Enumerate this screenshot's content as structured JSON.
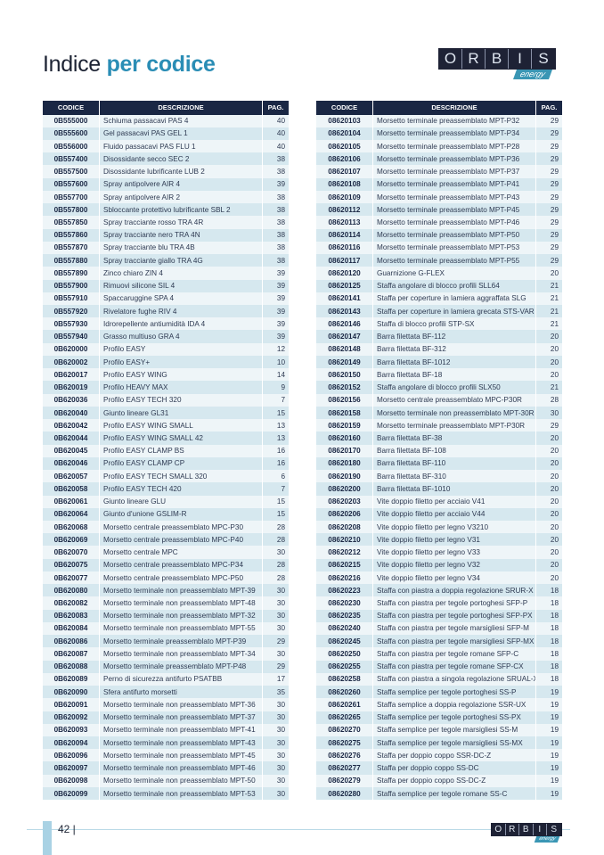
{
  "title": {
    "plain": "Indice ",
    "bold": "per codice"
  },
  "logo": {
    "letters": [
      "O",
      "R",
      "B",
      "I",
      "S"
    ],
    "sub": "energy"
  },
  "headers": {
    "code": "CODICE",
    "desc": "DESCRIZIONE",
    "page": "PAG."
  },
  "left_rows": [
    [
      "0B555000",
      "Schiuma passacavi PAS 4",
      "40"
    ],
    [
      "0B555600",
      "Gel passacavi PAS GEL 1",
      "40"
    ],
    [
      "0B556000",
      "Fluido passacavi PAS FLU 1",
      "40"
    ],
    [
      "0B557400",
      "Disossidante secco SEC 2",
      "38"
    ],
    [
      "0B557500",
      "Disossidante lubrificante LUB 2",
      "38"
    ],
    [
      "0B557600",
      "Spray antipolvere AIR 4",
      "39"
    ],
    [
      "0B557700",
      "Spray antipolvere AIR 2",
      "38"
    ],
    [
      "0B557800",
      "Sbloccante protettivo lubrificante SBL 2",
      "38"
    ],
    [
      "0B557850",
      "Spray tracciante rosso TRA 4R",
      "38"
    ],
    [
      "0B557860",
      "Spray tracciante nero TRA 4N",
      "38"
    ],
    [
      "0B557870",
      "Spray tracciante blu TRA 4B",
      "38"
    ],
    [
      "0B557880",
      "Spray tracciante giallo TRA 4G",
      "38"
    ],
    [
      "0B557890",
      "Zinco chiaro ZIN 4",
      "39"
    ],
    [
      "0B557900",
      "Rimuovi silicone SIL 4",
      "39"
    ],
    [
      "0B557910",
      "Spaccaruggine SPA 4",
      "39"
    ],
    [
      "0B557920",
      "Rivelatore fughe RIV 4",
      "39"
    ],
    [
      "0B557930",
      "Idrorepellente antiumidità IDA 4",
      "39"
    ],
    [
      "0B557940",
      "Grasso multiuso GRA 4",
      "39"
    ],
    [
      "0B620000",
      "Profilo EASY",
      "12"
    ],
    [
      "0B620002",
      "Profilo EASY+",
      "10"
    ],
    [
      "0B620017",
      "Profilo EASY WING",
      "14"
    ],
    [
      "0B620019",
      "Profilo HEAVY MAX",
      "9"
    ],
    [
      "0B620036",
      "Profilo EASY TECH 320",
      "7"
    ],
    [
      "0B620040",
      "Giunto lineare GL31",
      "15"
    ],
    [
      "0B620042",
      "Profilo EASY WING SMALL",
      "13"
    ],
    [
      "0B620044",
      "Profilo EASY WING SMALL 42",
      "13"
    ],
    [
      "0B620045",
      "Profilo EASY CLAMP BS",
      "16"
    ],
    [
      "0B620046",
      "Profilo EASY CLAMP CP",
      "16"
    ],
    [
      "0B620057",
      "Profilo EASY TECH SMALL 320",
      "6"
    ],
    [
      "0B620058",
      "Profilo EASY TECH 420",
      "7"
    ],
    [
      "0B620061",
      "Giunto lineare GLU",
      "15"
    ],
    [
      "0B620064",
      "Giunto d'unione GSLIM-R",
      "15"
    ],
    [
      "0B620068",
      "Morsetto centrale preassemblato MPC-P30",
      "28"
    ],
    [
      "0B620069",
      "Morsetto centrale preassemblato MPC-P40",
      "28"
    ],
    [
      "0B620070",
      "Morsetto centrale MPC",
      "30"
    ],
    [
      "0B620075",
      "Morsetto centrale preassemblato MPC-P34",
      "28"
    ],
    [
      "0B620077",
      "Morsetto centrale preassemblato MPC-P50",
      "28"
    ],
    [
      "0B620080",
      "Morsetto terminale non preassemblato MPT-39",
      "30"
    ],
    [
      "0B620082",
      "Morsetto terminale non preassemblato MPT-48",
      "30"
    ],
    [
      "0B620083",
      "Morsetto terminale non preassemblato MPT-32",
      "30"
    ],
    [
      "0B620084",
      "Morsetto terminale non preassemblato MPT-55",
      "30"
    ],
    [
      "0B620086",
      "Morsetto terminale preassemblato MPT-P39",
      "29"
    ],
    [
      "0B620087",
      "Morsetto terminale non preassemblato MPT-34",
      "30"
    ],
    [
      "0B620088",
      "Morsetto terminale preassemblato MPT-P48",
      "29"
    ],
    [
      "0B620089",
      "Perno di sicurezza antifurto PSATBB",
      "17"
    ],
    [
      "0B620090",
      "Sfera antifurto morsetti",
      "35"
    ],
    [
      "0B620091",
      "Morsetto terminale non preassemblato MPT-36",
      "30"
    ],
    [
      "0B620092",
      "Morsetto terminale non preassemblato MPT-37",
      "30"
    ],
    [
      "0B620093",
      "Morsetto terminale non preassemblato MPT-41",
      "30"
    ],
    [
      "0B620094",
      "Morsetto terminale non preassemblato MPT-43",
      "30"
    ],
    [
      "0B620096",
      "Morsetto terminale non preassemblato MPT-45",
      "30"
    ],
    [
      "0B620097",
      "Morsetto terminale non preassemblato MPT-46",
      "30"
    ],
    [
      "0B620098",
      "Morsetto terminale non preassemblato MPT-50",
      "30"
    ],
    [
      "0B620099",
      "Morsetto terminale non preassemblato MPT-53",
      "30"
    ]
  ],
  "right_rows": [
    [
      "08620103",
      "Morsetto terminale preassemblato MPT-P32",
      "29"
    ],
    [
      "08620104",
      "Morsetto terminale preassemblato MPT-P34",
      "29"
    ],
    [
      "08620105",
      "Morsetto terminale preassemblato MPT-P28",
      "29"
    ],
    [
      "08620106",
      "Morsetto terminale preassemblato MPT-P36",
      "29"
    ],
    [
      "08620107",
      "Morsetto terminale preassemblato MPT-P37",
      "29"
    ],
    [
      "08620108",
      "Morsetto terminale preassemblato MPT-P41",
      "29"
    ],
    [
      "08620109",
      "Morsetto terminale preassemblato MPT-P43",
      "29"
    ],
    [
      "08620112",
      "Morsetto terminale preassemblato MPT-P45",
      "29"
    ],
    [
      "08620113",
      "Morsetto terminale preassemblato MPT-P46",
      "29"
    ],
    [
      "08620114",
      "Morsetto terminale preassemblato MPT-P50",
      "29"
    ],
    [
      "08620116",
      "Morsetto terminale preassemblato MPT-P53",
      "29"
    ],
    [
      "08620117",
      "Morsetto terminale preassemblato MPT-P55",
      "29"
    ],
    [
      "08620120",
      "Guarnizione G-FLEX",
      "20"
    ],
    [
      "08620125",
      "Staffa angolare di blocco profili SLL64",
      "21"
    ],
    [
      "08620141",
      "Staffa per coperture in lamiera aggraffata SLG",
      "21"
    ],
    [
      "08620143",
      "Staffa per coperture in lamiera grecata STS-VAR",
      "21"
    ],
    [
      "08620146",
      "Staffa di blocco profili STP-SX",
      "21"
    ],
    [
      "08620147",
      "Barra filettata BF-112",
      "20"
    ],
    [
      "08620148",
      "Barra filettata BF-312",
      "20"
    ],
    [
      "08620149",
      "Barra filettata BF-1012",
      "20"
    ],
    [
      "08620150",
      "Barra filettata BF-18",
      "20"
    ],
    [
      "08620152",
      "Staffa angolare di blocco profili SLX50",
      "21"
    ],
    [
      "08620156",
      "Morsetto centrale preassemblato MPC-P30R",
      "28"
    ],
    [
      "08620158",
      "Morsetto terminale non preassemblato MPT-30R",
      "30"
    ],
    [
      "08620159",
      "Morsetto terminale preassemblato MPT-P30R",
      "29"
    ],
    [
      "08620160",
      "Barra filettata BF-38",
      "20"
    ],
    [
      "08620170",
      "Barra filettata BF-108",
      "20"
    ],
    [
      "08620180",
      "Barra filettata BF-110",
      "20"
    ],
    [
      "08620190",
      "Barra filettata BF-310",
      "20"
    ],
    [
      "08620200",
      "Barra filettata BF-1010",
      "20"
    ],
    [
      "08620203",
      "Vite doppio filetto per acciaio V41",
      "20"
    ],
    [
      "08620206",
      "Vite doppio filetto per acciaio V44",
      "20"
    ],
    [
      "08620208",
      "Vite doppio filetto per legno V3210",
      "20"
    ],
    [
      "08620210",
      "Vite doppio filetto per legno V31",
      "20"
    ],
    [
      "08620212",
      "Vite doppio filetto per legno V33",
      "20"
    ],
    [
      "08620215",
      "Vite doppio filetto per legno V32",
      "20"
    ],
    [
      "08620216",
      "Vite doppio filetto per legno V34",
      "20"
    ],
    [
      "08620223",
      "Staffa con piastra a doppia regolazione SRUR-X",
      "18"
    ],
    [
      "08620230",
      "Staffa con piastra per tegole portoghesi SFP-P",
      "18"
    ],
    [
      "08620235",
      "Staffa con piastra per tegole portoghesi SFP-PX",
      "18"
    ],
    [
      "08620240",
      "Staffa con piastra per tegole marsigliesi SFP-M",
      "18"
    ],
    [
      "08620245",
      "Staffa con piastra per tegole marsigliesi SFP-MX",
      "18"
    ],
    [
      "08620250",
      "Staffa con piastra per tegole romane SFP-C",
      "18"
    ],
    [
      "08620255",
      "Staffa con piastra per tegole romane SFP-CX",
      "18"
    ],
    [
      "08620258",
      "Staffa con piastra a singola regolazione SRUAL-X",
      "18"
    ],
    [
      "08620260",
      "Staffa semplice per tegole portoghesi SS-P",
      "19"
    ],
    [
      "08620261",
      "Staffa semplice a doppia regolazione SSR-UX",
      "19"
    ],
    [
      "08620265",
      "Staffa semplice per tegole portoghesi SS-PX",
      "19"
    ],
    [
      "08620270",
      "Staffa semplice per tegole marsigliesi SS-M",
      "19"
    ],
    [
      "08620275",
      "Staffa semplice per tegole marsigliesi SS-MX",
      "19"
    ],
    [
      "08620276",
      "Staffa per doppio coppo SSR-DC-Z",
      "19"
    ],
    [
      "08620277",
      "Staffa per doppio coppo SS-DC",
      "19"
    ],
    [
      "08620279",
      "Staffa per doppio coppo SS-DC-Z",
      "19"
    ],
    [
      "08620280",
      "Staffa semplice per tegole romane SS-C",
      "19"
    ]
  ],
  "footer": {
    "page_number": "42 |"
  }
}
